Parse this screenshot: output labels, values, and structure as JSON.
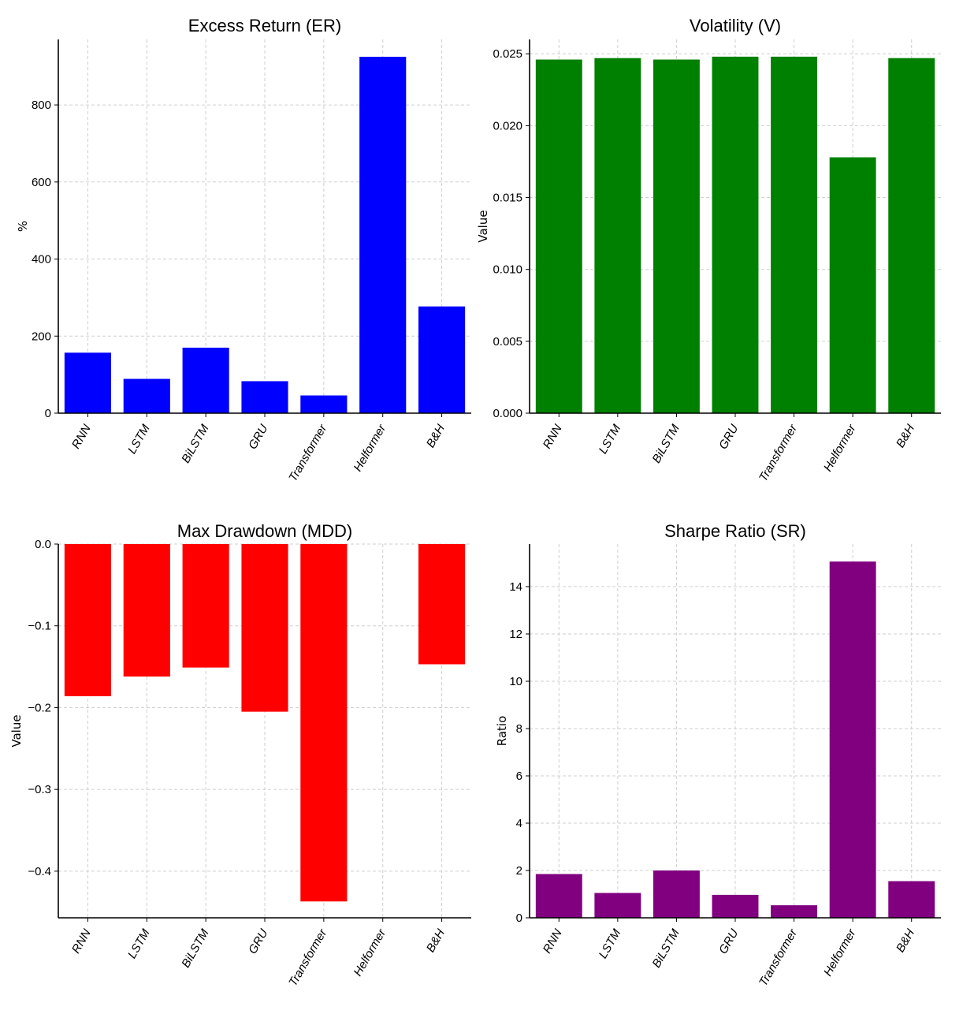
{
  "chart_data": [
    {
      "type": "bar",
      "title": "Excess Return (ER)",
      "ylabel": "%",
      "xlabel": "",
      "categories": [
        "RNN",
        "LSTM",
        "BiLSTM",
        "GRU",
        "Transformer",
        "Helformer",
        "B&H"
      ],
      "values": [
        157,
        89,
        170,
        83,
        46,
        925,
        277
      ],
      "ylim": [
        0,
        970
      ],
      "yticks": [
        0,
        200,
        400,
        600,
        800
      ],
      "ytick_labels": [
        "0",
        "200",
        "400",
        "600",
        "800"
      ],
      "color": "#0000ff",
      "grid": true
    },
    {
      "type": "bar",
      "title": "Volatility (V)",
      "ylabel": "Value",
      "xlabel": "",
      "categories": [
        "RNN",
        "LSTM",
        "BiLSTM",
        "GRU",
        "Transformer",
        "Helformer",
        "B&H"
      ],
      "values": [
        0.0246,
        0.0247,
        0.0246,
        0.0248,
        0.0248,
        0.0178,
        0.0247
      ],
      "ylim": [
        0,
        0.026
      ],
      "yticks": [
        0,
        0.005,
        0.01,
        0.015,
        0.02,
        0.025
      ],
      "ytick_labels": [
        "0.000",
        "0.005",
        "0.010",
        "0.015",
        "0.020",
        "0.025"
      ],
      "color": "#008000",
      "grid": true
    },
    {
      "type": "bar",
      "title": "Max Drawdown (MDD)",
      "ylabel": "Value",
      "xlabel": "",
      "categories": [
        "RNN",
        "LSTM",
        "BiLSTM",
        "GRU",
        "Transformer",
        "Helformer",
        "B&H"
      ],
      "values": [
        -0.186,
        -0.162,
        -0.151,
        -0.205,
        -0.437,
        0,
        -0.147
      ],
      "ylim": [
        -0.457,
        0
      ],
      "yticks": [
        0,
        -0.1,
        -0.2,
        -0.3,
        -0.4
      ],
      "ytick_labels": [
        "0.0",
        "−0.1",
        "−0.2",
        "−0.3",
        "−0.4"
      ],
      "color": "#ff0000",
      "grid": true
    },
    {
      "type": "bar",
      "title": "Sharpe Ratio (SR)",
      "ylabel": "Ratio",
      "xlabel": "",
      "categories": [
        "RNN",
        "LSTM",
        "BiLSTM",
        "GRU",
        "Transformer",
        "Helformer",
        "B&H"
      ],
      "values": [
        1.85,
        1.05,
        2.0,
        0.97,
        0.53,
        15.06,
        1.55
      ],
      "ylim": [
        0,
        15.8
      ],
      "yticks": [
        0,
        2,
        4,
        6,
        8,
        10,
        12,
        14
      ],
      "ytick_labels": [
        "0",
        "2",
        "4",
        "6",
        "8",
        "10",
        "12",
        "14"
      ],
      "color": "#800080",
      "grid": true
    }
  ]
}
